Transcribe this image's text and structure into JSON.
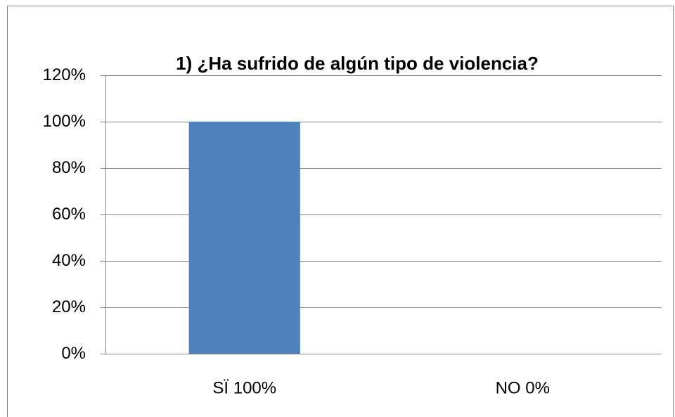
{
  "chart_data": {
    "type": "bar",
    "title": "1) ¿Ha sufrido de algún tipo de violencia?",
    "categories": [
      "SÏ 100%",
      "NO 0%"
    ],
    "values": [
      100,
      0
    ],
    "color": "#4f81bd",
    "ylim": [
      0,
      120
    ],
    "yticks": [
      {
        "value": 0,
        "label": "0%"
      },
      {
        "value": 20,
        "label": "20%"
      },
      {
        "value": 40,
        "label": "40%"
      },
      {
        "value": 60,
        "label": "60%"
      },
      {
        "value": 80,
        "label": "80%"
      },
      {
        "value": 100,
        "label": "100%"
      },
      {
        "value": 120,
        "label": "120%"
      }
    ],
    "grid": true
  }
}
